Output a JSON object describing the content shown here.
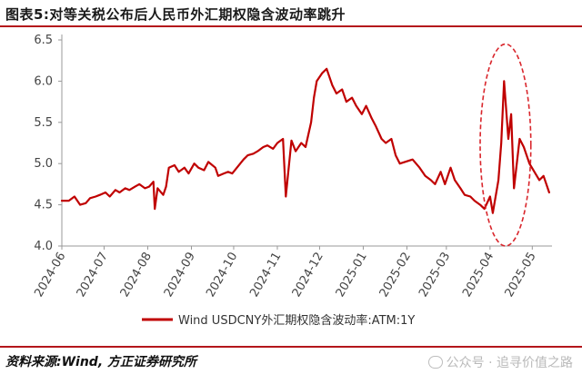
{
  "title": "图表5:对等关税公布后人民币外汇期权隐含波动率跳升",
  "source": "资料来源:Wind, 方正证券研究所",
  "watermark": "公众号 · 追寻价值之路",
  "colors": {
    "line": "#c00000",
    "accent": "#b4161b",
    "highlight": "#d9262c"
  },
  "chart_data": {
    "type": "line",
    "title": "图表5:对等关税公布后人民币外汇期权隐含波动率跳升",
    "xlabel": "",
    "ylabel": "",
    "ylim": [
      4.0,
      6.5
    ],
    "yticks": [
      4.0,
      4.5,
      5.0,
      5.5,
      6.0,
      6.5
    ],
    "xlim": [
      "2024-06-01",
      "2025-05-15"
    ],
    "xticks": [
      "2024-06",
      "2024-07",
      "2024-08",
      "2024-09",
      "2024-10",
      "2024-11",
      "2024-12",
      "2025-01",
      "2025-02",
      "2025-03",
      "2025-04",
      "2025-05"
    ],
    "grid": false,
    "legend_position": "bottom",
    "annotations": [
      {
        "type": "dashed-ellipse",
        "label": "",
        "x_range": [
          "2025-03-25",
          "2025-04-30"
        ],
        "y_range": [
          4.0,
          6.45
        ]
      }
    ],
    "series": [
      {
        "name": "Wind USDCNY外汇期权隐含波动率:ATM:1Y",
        "x": [
          "2024-06-01",
          "2024-06-06",
          "2024-06-10",
          "2024-06-14",
          "2024-06-18",
          "2024-06-21",
          "2024-06-25",
          "2024-06-28",
          "2024-07-02",
          "2024-07-05",
          "2024-07-09",
          "2024-07-12",
          "2024-07-16",
          "2024-07-19",
          "2024-07-23",
          "2024-07-26",
          "2024-07-30",
          "2024-08-02",
          "2024-08-05",
          "2024-08-06",
          "2024-08-08",
          "2024-08-12",
          "2024-08-14",
          "2024-08-16",
          "2024-08-20",
          "2024-08-23",
          "2024-08-27",
          "2024-08-30",
          "2024-09-03",
          "2024-09-06",
          "2024-09-10",
          "2024-09-13",
          "2024-09-18",
          "2024-09-20",
          "2024-09-24",
          "2024-09-27",
          "2024-09-30",
          "2024-10-08",
          "2024-10-11",
          "2024-10-15",
          "2024-10-18",
          "2024-10-22",
          "2024-10-25",
          "2024-10-29",
          "2024-11-01",
          "2024-11-05",
          "2024-11-07",
          "2024-11-11",
          "2024-11-14",
          "2024-11-18",
          "2024-11-21",
          "2024-11-25",
          "2024-11-27",
          "2024-11-29",
          "2024-12-03",
          "2024-12-06",
          "2024-12-10",
          "2024-12-13",
          "2024-12-17",
          "2024-12-20",
          "2024-12-24",
          "2024-12-27",
          "2024-12-31",
          "2025-01-03",
          "2025-01-07",
          "2025-01-10",
          "2025-01-14",
          "2025-01-17",
          "2025-01-21",
          "2025-01-24",
          "2025-01-27",
          "2025-02-05",
          "2025-02-10",
          "2025-02-14",
          "2025-02-18",
          "2025-02-21",
          "2025-02-25",
          "2025-02-28",
          "2025-03-04",
          "2025-03-07",
          "2025-03-11",
          "2025-03-14",
          "2025-03-18",
          "2025-03-21",
          "2025-03-25",
          "2025-03-28",
          "2025-04-01",
          "2025-04-03",
          "2025-04-07",
          "2025-04-09",
          "2025-04-11",
          "2025-04-14",
          "2025-04-16",
          "2025-04-18",
          "2025-04-22",
          "2025-04-25",
          "2025-04-29",
          "2025-05-06",
          "2025-05-09",
          "2025-05-13"
        ],
        "values": [
          4.55,
          4.55,
          4.6,
          4.5,
          4.52,
          4.58,
          4.6,
          4.62,
          4.65,
          4.6,
          4.68,
          4.65,
          4.7,
          4.68,
          4.72,
          4.75,
          4.7,
          4.72,
          4.78,
          4.45,
          4.7,
          4.62,
          4.72,
          4.95,
          4.98,
          4.9,
          4.95,
          4.88,
          5.0,
          4.95,
          4.92,
          5.02,
          4.95,
          4.85,
          4.88,
          4.9,
          4.88,
          5.05,
          5.1,
          5.12,
          5.15,
          5.2,
          5.22,
          5.18,
          5.25,
          5.3,
          4.6,
          5.28,
          5.15,
          5.25,
          5.2,
          5.5,
          5.8,
          6.0,
          6.1,
          6.15,
          5.95,
          5.85,
          5.9,
          5.75,
          5.8,
          5.7,
          5.6,
          5.7,
          5.55,
          5.45,
          5.3,
          5.25,
          5.3,
          5.1,
          5.0,
          5.05,
          4.95,
          4.85,
          4.8,
          4.75,
          4.9,
          4.75,
          4.95,
          4.8,
          4.7,
          4.62,
          4.6,
          4.55,
          4.5,
          4.45,
          4.6,
          4.4,
          4.8,
          5.25,
          6.0,
          5.3,
          5.6,
          4.7,
          5.3,
          5.2,
          5.0,
          4.8,
          4.85,
          4.65
        ]
      }
    ]
  }
}
